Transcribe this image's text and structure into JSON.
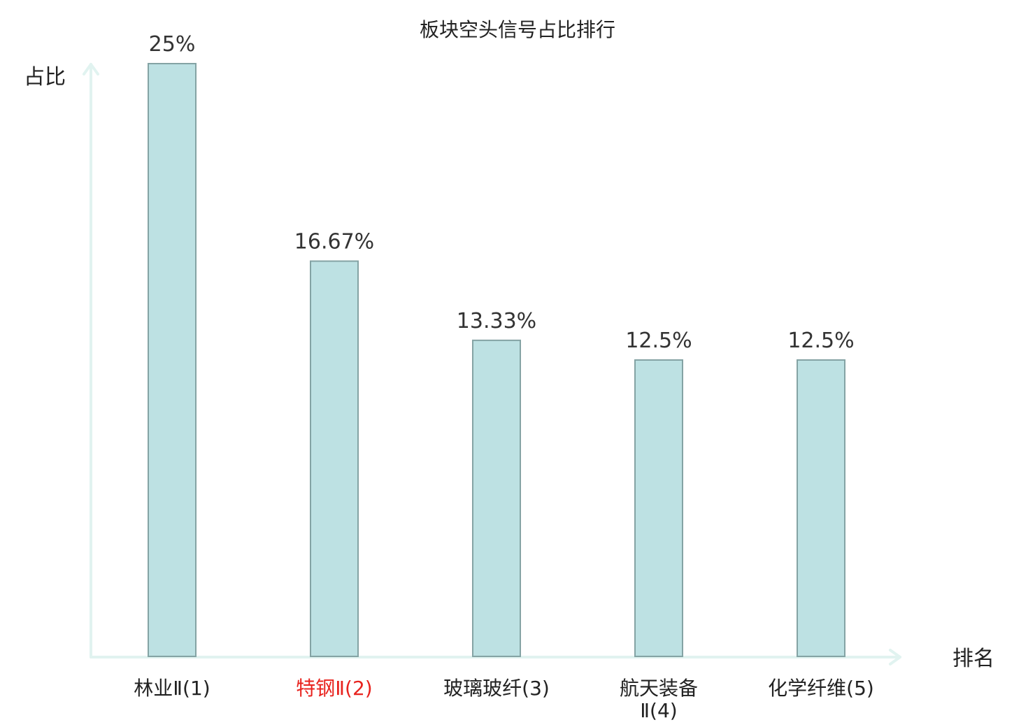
{
  "colors": {
    "bar_fill": "#bde1e3",
    "bar_stroke": "#84a3a4",
    "axis": "#e1f3f0",
    "highlight": "#e8231e",
    "text": "#222222"
  },
  "chart_data": {
    "type": "bar",
    "title": "板块空头信号占比排行",
    "xlabel": "排名",
    "ylabel": "占比",
    "ylim": [
      0,
      25
    ],
    "grid": false,
    "highlight_index": 1,
    "categories": [
      "林业Ⅱ(1)",
      "特钢Ⅱ(2)",
      "玻璃玻纤(3)",
      "航天装备Ⅱ(4)",
      "化学纤维(5)"
    ],
    "category_lines": [
      [
        "林业Ⅱ(1)"
      ],
      [
        "特钢Ⅱ(2)"
      ],
      [
        "玻璃玻纤(3)"
      ],
      [
        "航天装备",
        "Ⅱ(4)"
      ],
      [
        "化学纤维(5)"
      ]
    ],
    "values": [
      25,
      16.67,
      13.33,
      12.5,
      12.5
    ],
    "value_labels": [
      "25%",
      "16.67%",
      "13.33%",
      "12.5%",
      "12.5%"
    ]
  }
}
